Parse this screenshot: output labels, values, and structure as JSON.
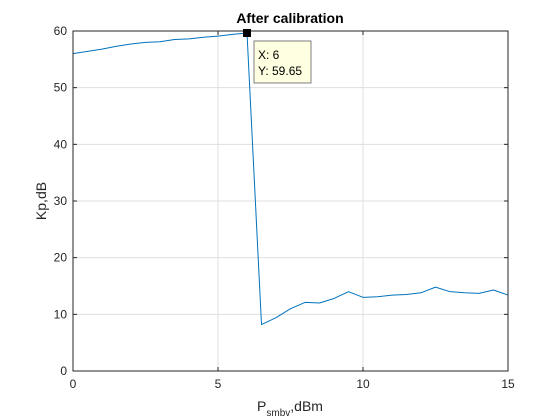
{
  "chart_data": {
    "type": "line",
    "title": "After calibration",
    "xlabel": {
      "main": "P",
      "subscript": "smbv",
      "suffix": ",dBm"
    },
    "ylabel": "Kp,dB",
    "xlim": [
      0,
      15
    ],
    "ylim": [
      0,
      60
    ],
    "xticks": [
      0,
      5,
      10,
      15
    ],
    "yticks": [
      0,
      10,
      20,
      30,
      40,
      50,
      60
    ],
    "grid": true,
    "series": [
      {
        "color": "#0072BD",
        "x": [
          0,
          0.5,
          1,
          1.5,
          2,
          2.5,
          3,
          3.5,
          4,
          4.5,
          5,
          5.5,
          6,
          6.5,
          7,
          7.5,
          8,
          8.5,
          9,
          9.5,
          10,
          10.5,
          11,
          11.5,
          12,
          12.5,
          13,
          13.5,
          14,
          14.5,
          15
        ],
        "y": [
          56.0,
          56.4,
          56.8,
          57.3,
          57.7,
          58.0,
          58.1,
          58.5,
          58.6,
          58.9,
          59.1,
          59.4,
          59.65,
          8.2,
          9.4,
          11.0,
          12.1,
          12.0,
          12.8,
          14.0,
          13.0,
          13.1,
          13.4,
          13.5,
          13.8,
          14.8,
          14.0,
          13.8,
          13.7,
          14.3,
          13.4
        ]
      }
    ],
    "datatip": {
      "x_text": "X: 6",
      "y_text": "Y: 59.65",
      "x": 6,
      "y": 59.65
    }
  },
  "colors": {
    "line": "#0072BD",
    "grid": "#dfdfdf",
    "axis": "#262626",
    "tip_bg": "#ffffe1"
  }
}
